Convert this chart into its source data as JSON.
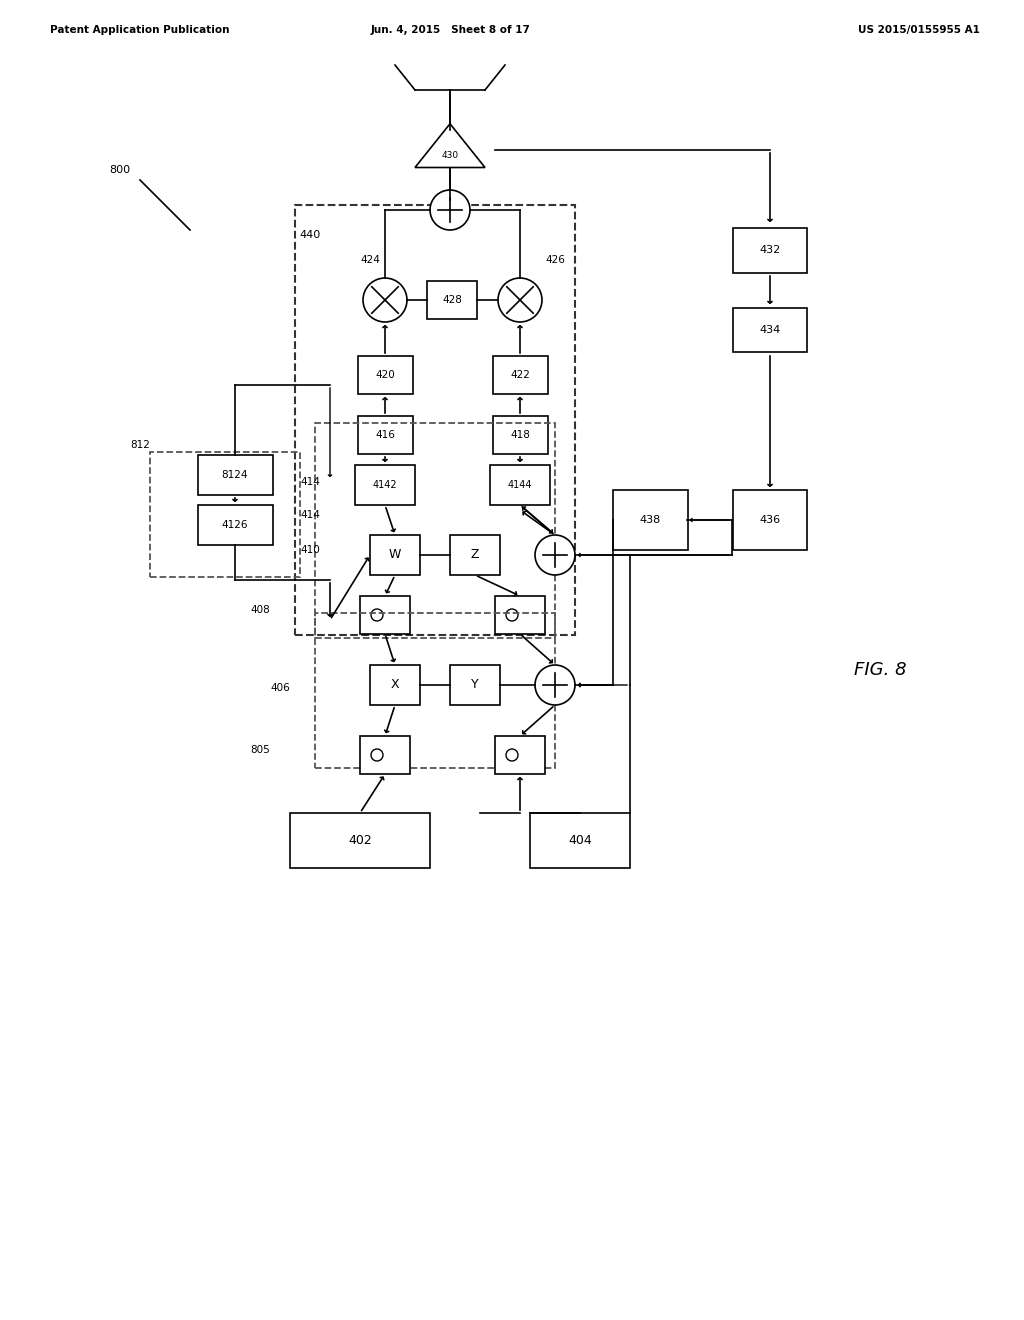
{
  "title_left": "Patent Application Publication",
  "title_mid": "Jun. 4, 2015   Sheet 8 of 17",
  "title_right": "US 2015/0155955 A1",
  "fig_label": "FIG. 8",
  "bg_color": "#ffffff",
  "line_color": "#000000",
  "box_color": "#ffffff",
  "dashed_color": "#555555",
  "label_800": "800",
  "label_402": "402",
  "label_404": "404",
  "label_430": "430",
  "label_432": "432",
  "label_434": "434",
  "label_436": "436",
  "label_438": "438",
  "label_416": "416",
  "label_418": "418",
  "label_420": "420",
  "label_422": "422",
  "label_424": "424",
  "label_426": "426",
  "label_428": "428",
  "label_440": "440",
  "label_414": "414",
  "label_410": "410",
  "label_408": "408",
  "label_406": "406",
  "label_805": "805",
  "label_4142": "4142",
  "label_4144": "4144",
  "label_W": "W",
  "label_Z": "Z",
  "label_X": "X",
  "label_Y": "Y",
  "label_812": "812",
  "label_8124": "8124",
  "label_8126": "4126"
}
